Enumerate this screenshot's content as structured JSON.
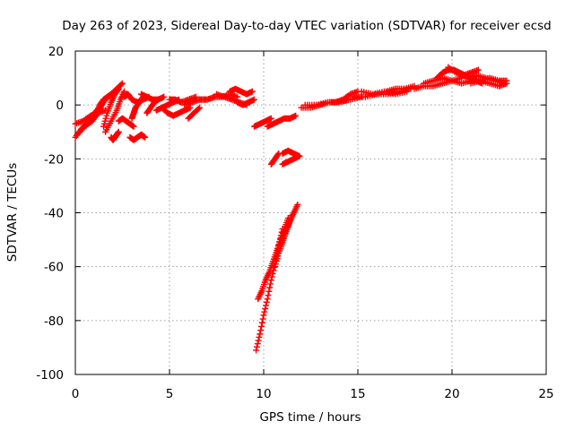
{
  "chart_data": {
    "type": "scatter",
    "title": "Day 263 of 2023, Sidereal Day-to-day VTEC variation (SDTVAR) for receiver ecsd",
    "xlabel": "GPS time / hours",
    "ylabel": "SDTVAR / TECUs",
    "xlim": [
      0,
      25
    ],
    "ylim": [
      -100,
      20
    ],
    "xticks": [
      0,
      5,
      10,
      15,
      20,
      25
    ],
    "yticks": [
      -100,
      -80,
      -60,
      -40,
      -20,
      0,
      20
    ],
    "grid": true,
    "marker": "plus",
    "color": "#ff0000",
    "segments": [
      {
        "x": [
          0.0,
          0.3,
          0.6,
          0.9,
          1.1
        ],
        "y": [
          -12,
          -9,
          -7,
          -5,
          -4
        ]
      },
      {
        "x": [
          0.0,
          0.4,
          0.8,
          1.2,
          1.6
        ],
        "y": [
          -7,
          -6,
          -4,
          -3,
          -2
        ]
      },
      {
        "x": [
          0.1,
          0.5,
          0.9,
          1.2,
          1.4
        ],
        "y": [
          -11,
          -8,
          -6,
          -3,
          0
        ]
      },
      {
        "x": [
          0.9,
          1.1,
          1.3,
          1.5,
          1.7,
          1.9
        ],
        "y": [
          -5,
          -3,
          0,
          2,
          3,
          4
        ]
      },
      {
        "x": [
          1.0,
          1.3,
          1.6,
          1.9,
          2.2,
          2.5
        ],
        "y": [
          -3,
          -1,
          2,
          4,
          6,
          8
        ]
      },
      {
        "x": [
          1.5,
          1.7,
          1.9,
          2.1,
          2.3
        ],
        "y": [
          -8,
          -3,
          1,
          4,
          6
        ]
      },
      {
        "x": [
          1.6,
          1.9,
          2.2,
          2.4,
          2.6
        ],
        "y": [
          -10,
          -6,
          -2,
          2,
          5
        ]
      },
      {
        "x": [
          1.9,
          2.0,
          2.1,
          2.2,
          2.3
        ],
        "y": [
          -12,
          -13,
          -12,
          -11,
          -10
        ]
      },
      {
        "x": [
          2.3,
          2.5,
          2.7,
          2.9,
          3.1
        ],
        "y": [
          -6,
          -5,
          -6,
          -7,
          -8
        ]
      },
      {
        "x": [
          2.9,
          3.1,
          3.3,
          3.5,
          3.7
        ],
        "y": [
          -12,
          -13,
          -12,
          -11,
          -12
        ]
      },
      {
        "x": [
          2.6,
          2.8,
          3.0,
          3.3,
          3.6,
          3.9
        ],
        "y": [
          3,
          4,
          2,
          1,
          2,
          3
        ]
      },
      {
        "x": [
          3.0,
          3.1,
          3.2,
          3.4,
          3.6
        ],
        "y": [
          -5,
          -3,
          -1,
          1,
          3
        ]
      },
      {
        "x": [
          3.5,
          3.8,
          4.1,
          4.4,
          4.7
        ],
        "y": [
          4,
          3,
          2,
          2,
          3
        ]
      },
      {
        "x": [
          3.8,
          4.0,
          4.2,
          4.4
        ],
        "y": [
          -3,
          -1,
          1,
          2
        ]
      },
      {
        "x": [
          4.3,
          4.6,
          4.9,
          5.2,
          5.5
        ],
        "y": [
          -2,
          -1,
          0,
          1,
          2
        ]
      },
      {
        "x": [
          4.6,
          4.9,
          5.2,
          5.5,
          5.8,
          6.1
        ],
        "y": [
          -1,
          -3,
          -4,
          -3,
          -2,
          -1
        ]
      },
      {
        "x": [
          5.0,
          5.3,
          5.6,
          6.0,
          6.4
        ],
        "y": [
          2,
          2,
          1,
          2,
          3
        ]
      },
      {
        "x": [
          5.8,
          6.2,
          6.6,
          7.0,
          7.4
        ],
        "y": [
          0,
          1,
          2,
          2,
          3
        ]
      },
      {
        "x": [
          6.0,
          6.3,
          6.6
        ],
        "y": [
          -5,
          -3,
          -1
        ]
      },
      {
        "x": [
          6.6,
          7.0,
          7.4,
          7.8,
          8.2,
          8.6
        ],
        "y": [
          2,
          2,
          3,
          3,
          4,
          3
        ]
      },
      {
        "x": [
          7.5,
          7.9,
          8.3,
          8.7,
          9.1
        ],
        "y": [
          4,
          3,
          2,
          1,
          0
        ]
      },
      {
        "x": [
          8.2,
          8.5,
          8.8,
          9.1,
          9.4
        ],
        "y": [
          5,
          6,
          5,
          4,
          5
        ]
      },
      {
        "x": [
          8.6,
          8.9,
          9.2,
          9.5
        ],
        "y": [
          1,
          0,
          1,
          2
        ]
      },
      {
        "x": [
          9.5,
          9.8,
          10.1,
          10.4
        ],
        "y": [
          -8,
          -7,
          -6,
          -5
        ]
      },
      {
        "x": [
          10.2,
          10.5,
          10.8,
          11.1,
          11.4,
          11.7
        ],
        "y": [
          -8,
          -7,
          -6,
          -5,
          -5,
          -4
        ]
      },
      {
        "x": [
          10.4,
          10.6,
          10.8
        ],
        "y": [
          -22,
          -20,
          -18
        ]
      },
      {
        "x": [
          11.0,
          11.3,
          11.6,
          11.9
        ],
        "y": [
          -22,
          -21,
          -20,
          -19
        ]
      },
      {
        "x": [
          11.0,
          11.3,
          11.6,
          11.9
        ],
        "y": [
          -18,
          -17,
          -18,
          -19
        ]
      },
      {
        "x": [
          9.6,
          9.8,
          10.0,
          10.2,
          10.4,
          10.6,
          10.8,
          11.0
        ],
        "y": [
          -91,
          -85,
          -78,
          -72,
          -65,
          -59,
          -52,
          -46
        ]
      },
      {
        "x": [
          9.7,
          9.9,
          10.1,
          10.3,
          10.5,
          10.7,
          10.9,
          11.1,
          11.3
        ],
        "y": [
          -72,
          -69,
          -65,
          -62,
          -58,
          -54,
          -50,
          -46,
          -42
        ]
      },
      {
        "x": [
          10.6,
          10.8,
          11.0,
          11.2,
          11.4,
          11.6,
          11.8
        ],
        "y": [
          -60,
          -55,
          -51,
          -47,
          -43,
          -40,
          -37
        ]
      },
      {
        "x": [
          10.9,
          11.1,
          11.3,
          11.5
        ],
        "y": [
          -52,
          -48,
          -45,
          -41
        ]
      },
      {
        "x": [
          12.0,
          12.5,
          13.0,
          13.5,
          14.0,
          14.5
        ],
        "y": [
          -1,
          -1,
          0,
          1,
          1,
          2
        ]
      },
      {
        "x": [
          12.2,
          12.8,
          13.4,
          14.0,
          14.6,
          15.2
        ],
        "y": [
          0,
          0,
          1,
          1,
          2,
          3
        ]
      },
      {
        "x": [
          13.8,
          14.2,
          14.6,
          15.0
        ],
        "y": [
          1,
          2,
          4,
          5
        ]
      },
      {
        "x": [
          14.8,
          15.4,
          16.0,
          16.6,
          17.2,
          17.8
        ],
        "y": [
          3,
          3,
          4,
          4,
          5,
          6
        ]
      },
      {
        "x": [
          15.2,
          15.8,
          16.4,
          17.0,
          17.6
        ],
        "y": [
          5,
          4,
          5,
          4,
          5
        ]
      },
      {
        "x": [
          16.5,
          17.0,
          17.5,
          18.0
        ],
        "y": [
          5,
          6,
          6,
          7
        ]
      },
      {
        "x": [
          18.0,
          18.5,
          19.0,
          19.5,
          20.0,
          20.5
        ],
        "y": [
          6,
          7,
          7,
          8,
          9,
          10
        ]
      },
      {
        "x": [
          18.5,
          19.0,
          19.5,
          20.0,
          20.5,
          21.0
        ],
        "y": [
          8,
          9,
          10,
          9,
          8,
          9
        ]
      },
      {
        "x": [
          19.2,
          19.5,
          19.8,
          20.1,
          20.4,
          20.7,
          21.0,
          21.3,
          21.6
        ],
        "y": [
          10,
          12,
          13,
          13,
          12,
          11,
          10,
          9,
          8
        ]
      },
      {
        "x": [
          19.8,
          20.2,
          20.6,
          21.0,
          21.4
        ],
        "y": [
          14,
          12,
          11,
          12,
          13
        ]
      },
      {
        "x": [
          20.5,
          21.0,
          21.5,
          22.0,
          22.5,
          22.9
        ],
        "y": [
          11,
          10,
          9,
          10,
          9,
          9
        ]
      },
      {
        "x": [
          21.0,
          21.5,
          22.0,
          22.5,
          22.9
        ],
        "y": [
          8,
          9,
          8,
          7,
          8
        ]
      },
      {
        "x": [
          20.8,
          21.3,
          21.8,
          22.3,
          22.8
        ],
        "y": [
          10,
          11,
          10,
          9,
          8
        ]
      }
    ]
  }
}
